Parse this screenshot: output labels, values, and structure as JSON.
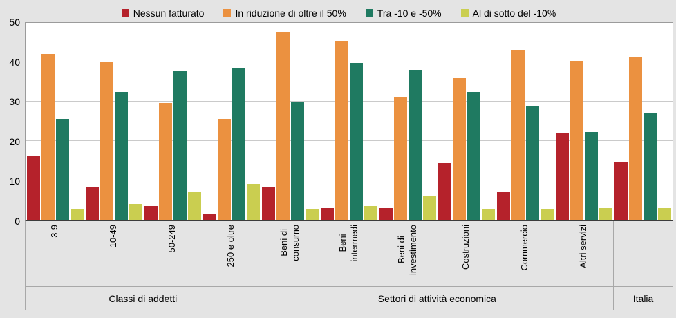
{
  "colors": {
    "background": "#e4e4e4",
    "plot_background": "#ffffff",
    "gridline": "#cacaca",
    "axis_line": "#3c3c3c",
    "separator": "#a8a8a8",
    "text": "#000000",
    "series_red": "#b5222b",
    "series_orange": "#eb9140",
    "series_teal": "#1f7a61",
    "series_yellowgreen": "#cace50"
  },
  "chart_data": {
    "type": "bar",
    "title": "",
    "xlabel": "",
    "ylabel": "",
    "ylim": [
      0,
      50
    ],
    "yticks": [
      0,
      10,
      20,
      30,
      40,
      50
    ],
    "grid": "horizontal",
    "legend_position": "top",
    "groups": [
      {
        "label": "Classi di addetti",
        "categories": [
          "3-9",
          "10-49",
          "50-249",
          "250 e oltre"
        ]
      },
      {
        "label": "Settori di attività economica",
        "categories": [
          "Beni di\nconsumo",
          "Beni\nintermedi",
          "Beni di\ninvestimento",
          "Costruzioni",
          "Commercio",
          "Altri servizi"
        ]
      },
      {
        "label": "Italia",
        "categories": [
          ""
        ]
      }
    ],
    "series": [
      {
        "name": "Nessun fatturato",
        "color": "#b5222b",
        "values": [
          16.2,
          8.4,
          3.5,
          1.4,
          8.2,
          3.0,
          2.9,
          14.4,
          7.1,
          21.9,
          14.6
        ]
      },
      {
        "name": "In riduzione di oltre il 50%",
        "color": "#eb9140",
        "values": [
          42.1,
          40.0,
          29.6,
          25.7,
          47.7,
          45.5,
          31.3,
          35.9,
          42.9,
          40.4,
          41.4
        ]
      },
      {
        "name": "Tra -10 e -50%",
        "color": "#1f7a61",
        "values": [
          25.6,
          32.5,
          37.9,
          38.4,
          29.9,
          39.8,
          38.1,
          32.5,
          28.9,
          22.2,
          27.2
        ]
      },
      {
        "name": "Al di sotto del -10%",
        "color": "#cace50",
        "values": [
          2.7,
          4.0,
          7.0,
          9.2,
          2.7,
          3.5,
          6.0,
          2.7,
          2.8,
          3.0,
          3.0
        ]
      }
    ]
  }
}
